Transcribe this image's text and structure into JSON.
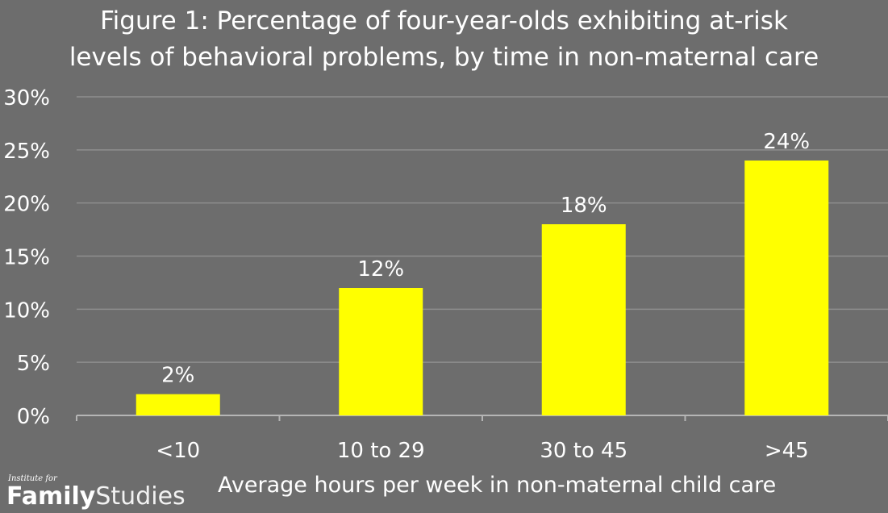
{
  "chart_data": {
    "type": "bar",
    "title": "Figure 1: Percentage of four-year-olds exhibiting at-risk levels of behavioral problems, by time in non-maternal care",
    "title_lines": [
      "Figure 1: Percentage of four-year-olds exhibiting at-risk",
      "levels of behavioral problems, by time in non-maternal care"
    ],
    "xlabel": "Average hours per week in non-maternal child care",
    "ylabel": "",
    "categories": [
      "<10",
      "10 to 29",
      "30 to 45",
      ">45"
    ],
    "values": [
      2,
      12,
      18,
      24
    ],
    "data_labels": [
      "2%",
      "12%",
      "18%",
      "24%"
    ],
    "ylim": [
      0,
      30
    ],
    "yticks": [
      0,
      5,
      10,
      15,
      20,
      25,
      30
    ],
    "ytick_labels": [
      "0%",
      "5%",
      "10%",
      "15%",
      "20%",
      "25%",
      "30%"
    ],
    "grid": true,
    "legend": "none",
    "colors": {
      "background": "#6d6d6d",
      "bar": "#ffff00",
      "grid": "#8e8e8e",
      "text": "#ffffff"
    }
  },
  "branding": {
    "logo_small": "Institute for",
    "logo_word1": "Family",
    "logo_word2": "Studies"
  }
}
